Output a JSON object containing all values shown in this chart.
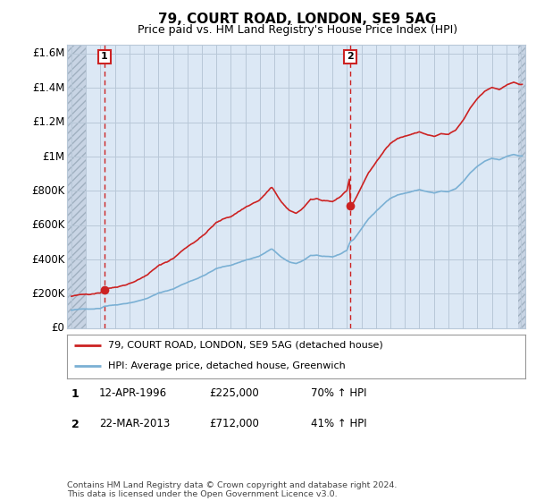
{
  "title": "79, COURT ROAD, LONDON, SE9 5AG",
  "subtitle": "Price paid vs. HM Land Registry's House Price Index (HPI)",
  "ylim": [
    0,
    1650000
  ],
  "yticks": [
    0,
    200000,
    400000,
    600000,
    800000,
    1000000,
    1200000,
    1400000,
    1600000
  ],
  "ytick_labels": [
    "£0",
    "£200K",
    "£400K",
    "£600K",
    "£800K",
    "£1M",
    "£1.2M",
    "£1.4M",
    "£1.6M"
  ],
  "sale1_year": 1996.28,
  "sale1_price": 225000,
  "sale2_year": 2013.22,
  "sale2_price": 712000,
  "hpi_color": "#7ab0d4",
  "price_color": "#cc2222",
  "dashed_color": "#cc2222",
  "legend_label_price": "79, COURT ROAD, LONDON, SE9 5AG (detached house)",
  "legend_label_hpi": "HPI: Average price, detached house, Greenwich",
  "annotation1_label": "1",
  "annotation1_date": "12-APR-1996",
  "annotation1_price": "£225,000",
  "annotation1_hpi": "70% ↑ HPI",
  "annotation2_label": "2",
  "annotation2_date": "22-MAR-2013",
  "annotation2_price": "£712,000",
  "annotation2_hpi": "41% ↑ HPI",
  "footnote": "Contains HM Land Registry data © Crown copyright and database right 2024.\nThis data is licensed under the Open Government Licence v3.0.",
  "plot_bg_color": "#dce8f5",
  "hatch_bg_color": "#c8d4e4",
  "grid_color": "#b8c8d8"
}
